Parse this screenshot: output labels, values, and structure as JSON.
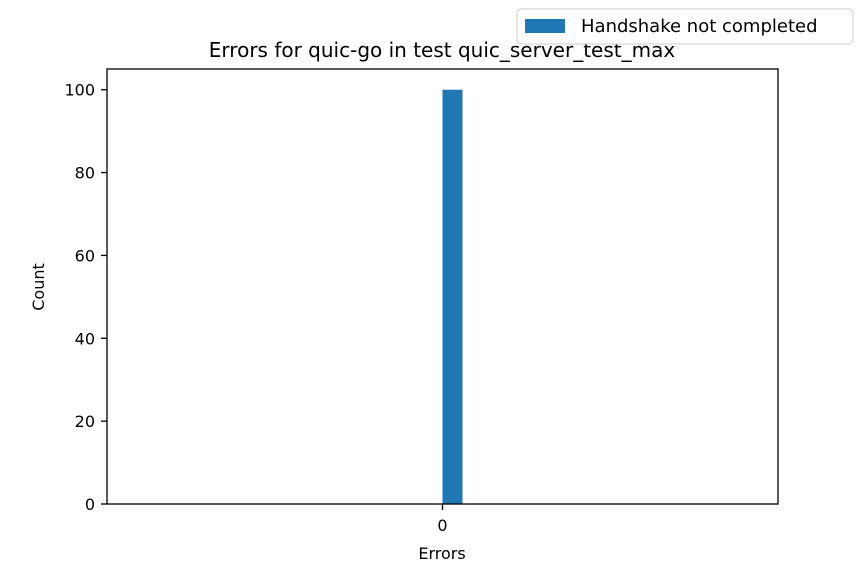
{
  "chart_data": {
    "type": "bar",
    "title": "Errors for quic-go in test quic_server_test_max",
    "xlabel": "Errors",
    "ylabel": "Count",
    "categories": [
      "0"
    ],
    "series": [
      {
        "name": "Handshake not completed",
        "values": [
          100
        ],
        "color": "#1f77b4"
      }
    ],
    "ylim": [
      0,
      105
    ],
    "yticks": [
      0,
      20,
      40,
      60,
      80,
      100
    ],
    "grid": false,
    "legend": "top-right, outside axes"
  }
}
